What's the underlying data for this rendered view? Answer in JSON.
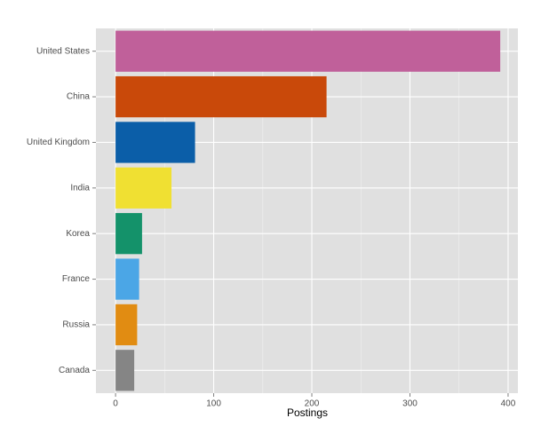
{
  "chart_data": {
    "type": "barh",
    "categories": [
      "United States",
      "China",
      "United Kingdom",
      "India",
      "Korea",
      "France",
      "Russia",
      "Canada"
    ],
    "values": [
      392,
      215,
      81,
      57,
      27,
      24,
      22,
      19
    ],
    "colors": [
      "#c0609a",
      "#c9490a",
      "#0b5ea8",
      "#f0e032",
      "#14926a",
      "#4ba6e6",
      "#e18c12",
      "#858585"
    ],
    "xlim": [
      -20,
      410
    ],
    "xticks": [
      0,
      100,
      200,
      300,
      400
    ],
    "xminor": [
      50,
      150,
      250,
      350
    ],
    "xlabel": "Postings",
    "grid": true
  }
}
